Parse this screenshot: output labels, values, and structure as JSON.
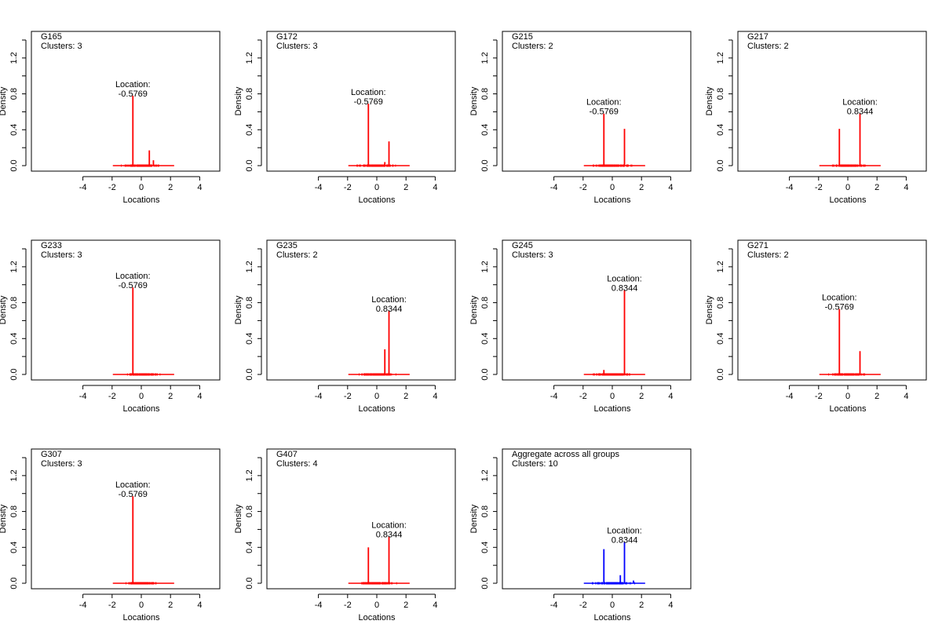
{
  "chart_data": [
    {
      "type": "bar",
      "title": "G165",
      "subtitle": "Clusters: 3",
      "color": "#ff0000",
      "xlabel": "Locations",
      "ylabel": "Density",
      "xlim": [
        -5,
        5
      ],
      "ylim": [
        0,
        1.4
      ],
      "xticks": [
        "-4",
        "-2",
        "0",
        "2",
        "4"
      ],
      "yticks": [
        "0.0",
        "0.4",
        "0.8",
        "1.2"
      ],
      "spikes": [
        {
          "x": -0.5769,
          "y": 0.78
        },
        {
          "x": 0.55,
          "y": 0.17
        },
        {
          "x": 0.83,
          "y": 0.06
        }
      ],
      "annotation": {
        "line1": "Location:",
        "line2": "-0.5769",
        "x": -0.5769
      }
    },
    {
      "type": "bar",
      "title": "G172",
      "subtitle": "Clusters: 3",
      "color": "#ff0000",
      "xlabel": "Locations",
      "ylabel": "Density",
      "xlim": [
        -5,
        5
      ],
      "ylim": [
        0,
        1.4
      ],
      "xticks": [
        "-4",
        "-2",
        "0",
        "2",
        "4"
      ],
      "yticks": [
        "0.0",
        "0.4",
        "0.8",
        "1.2"
      ],
      "spikes": [
        {
          "x": -0.5769,
          "y": 0.69
        },
        {
          "x": 0.55,
          "y": 0.04
        },
        {
          "x": 0.8344,
          "y": 0.27
        }
      ],
      "annotation": {
        "line1": "Location:",
        "line2": "-0.5769",
        "x": -0.5769
      }
    },
    {
      "type": "bar",
      "title": "G215",
      "subtitle": "Clusters: 2",
      "color": "#ff0000",
      "xlabel": "Locations",
      "ylabel": "Density",
      "xlim": [
        -5,
        5
      ],
      "ylim": [
        0,
        1.4
      ],
      "xticks": [
        "-4",
        "-2",
        "0",
        "2",
        "4"
      ],
      "yticks": [
        "0.0",
        "0.4",
        "0.8",
        "1.2"
      ],
      "spikes": [
        {
          "x": -0.5769,
          "y": 0.58
        },
        {
          "x": 0.8344,
          "y": 0.41
        }
      ],
      "annotation": {
        "line1": "Location:",
        "line2": "-0.5769",
        "x": -0.5769
      }
    },
    {
      "type": "bar",
      "title": "G217",
      "subtitle": "Clusters: 2",
      "color": "#ff0000",
      "xlabel": "Locations",
      "ylabel": "Density",
      "xlim": [
        -5,
        5
      ],
      "ylim": [
        0,
        1.4
      ],
      "xticks": [
        "-4",
        "-2",
        "0",
        "2",
        "4"
      ],
      "yticks": [
        "0.0",
        "0.4",
        "0.8",
        "1.2"
      ],
      "spikes": [
        {
          "x": -0.5769,
          "y": 0.41
        },
        {
          "x": 0.8344,
          "y": 0.58
        }
      ],
      "annotation": {
        "line1": "Location:",
        "line2": "0.8344",
        "x": 0.8344
      }
    },
    {
      "type": "bar",
      "title": "G233",
      "subtitle": "Clusters: 3",
      "color": "#ff0000",
      "xlabel": "Locations",
      "ylabel": "Density",
      "xlim": [
        -5,
        5
      ],
      "ylim": [
        0,
        1.4
      ],
      "xticks": [
        "-4",
        "-2",
        "0",
        "2",
        "4"
      ],
      "yticks": [
        "0.0",
        "0.4",
        "0.8",
        "1.2"
      ],
      "spikes": [
        {
          "x": -0.5769,
          "y": 0.97
        }
      ],
      "annotation": {
        "line1": "Location:",
        "line2": "-0.5769",
        "x": -0.5769
      }
    },
    {
      "type": "bar",
      "title": "G235",
      "subtitle": "Clusters: 2",
      "color": "#ff0000",
      "xlabel": "Locations",
      "ylabel": "Density",
      "xlim": [
        -5,
        5
      ],
      "ylim": [
        0,
        1.4
      ],
      "xticks": [
        "-4",
        "-2",
        "0",
        "2",
        "4"
      ],
      "yticks": [
        "0.0",
        "0.4",
        "0.8",
        "1.2"
      ],
      "spikes": [
        {
          "x": 0.55,
          "y": 0.28
        },
        {
          "x": 0.8344,
          "y": 0.71
        }
      ],
      "annotation": {
        "line1": "Location:",
        "line2": "0.8344",
        "x": 0.8344
      }
    },
    {
      "type": "bar",
      "title": "G245",
      "subtitle": "Clusters: 3",
      "color": "#ff0000",
      "xlabel": "Locations",
      "ylabel": "Density",
      "xlim": [
        -5,
        5
      ],
      "ylim": [
        0,
        1.4
      ],
      "xticks": [
        "-4",
        "-2",
        "0",
        "2",
        "4"
      ],
      "yticks": [
        "0.0",
        "0.4",
        "0.8",
        "1.2"
      ],
      "spikes": [
        {
          "x": -0.5769,
          "y": 0.05
        },
        {
          "x": 0.8344,
          "y": 0.94
        }
      ],
      "annotation": {
        "line1": "Location:",
        "line2": "0.8344",
        "x": 0.8344
      }
    },
    {
      "type": "bar",
      "title": "G271",
      "subtitle": "Clusters: 2",
      "color": "#ff0000",
      "xlabel": "Locations",
      "ylabel": "Density",
      "xlim": [
        -5,
        5
      ],
      "ylim": [
        0,
        1.4
      ],
      "xticks": [
        "-4",
        "-2",
        "0",
        "2",
        "4"
      ],
      "yticks": [
        "0.0",
        "0.4",
        "0.8",
        "1.2"
      ],
      "spikes": [
        {
          "x": -0.5769,
          "y": 0.73
        },
        {
          "x": 0.8344,
          "y": 0.26
        }
      ],
      "annotation": {
        "line1": "Location:",
        "line2": "-0.5769",
        "x": -0.5769
      }
    },
    {
      "type": "bar",
      "title": "G307",
      "subtitle": "Clusters: 3",
      "color": "#ff0000",
      "xlabel": "Locations",
      "ylabel": "Density",
      "xlim": [
        -5,
        5
      ],
      "ylim": [
        0,
        1.4
      ],
      "xticks": [
        "-4",
        "-2",
        "0",
        "2",
        "4"
      ],
      "yticks": [
        "0.0",
        "0.4",
        "0.8",
        "1.2"
      ],
      "spikes": [
        {
          "x": -0.5769,
          "y": 0.97
        },
        {
          "x": 0.8344,
          "y": 0.01
        }
      ],
      "annotation": {
        "line1": "Location:",
        "line2": "-0.5769",
        "x": -0.5769
      }
    },
    {
      "type": "bar",
      "title": "G407",
      "subtitle": "Clusters: 4",
      "color": "#ff0000",
      "xlabel": "Locations",
      "ylabel": "Density",
      "xlim": [
        -5,
        5
      ],
      "ylim": [
        0,
        1.4
      ],
      "xticks": [
        "-4",
        "-2",
        "0",
        "2",
        "4"
      ],
      "yticks": [
        "0.0",
        "0.4",
        "0.8",
        "1.2"
      ],
      "spikes": [
        {
          "x": -0.5769,
          "y": 0.4
        },
        {
          "x": 0.8344,
          "y": 0.52
        }
      ],
      "annotation": {
        "line1": "Location:",
        "line2": "0.8344",
        "x": 0.8344
      }
    },
    {
      "type": "bar",
      "title": "Aggregate across all groups",
      "subtitle": "Clusters: 10",
      "color": "#0000ff",
      "xlabel": "Locations",
      "ylabel": "Density",
      "xlim": [
        -5,
        5
      ],
      "ylim": [
        0,
        1.4
      ],
      "xticks": [
        "-4",
        "-2",
        "0",
        "2",
        "4"
      ],
      "yticks": [
        "0.0",
        "0.4",
        "0.8",
        "1.2"
      ],
      "spikes": [
        {
          "x": -0.5769,
          "y": 0.38
        },
        {
          "x": 0.55,
          "y": 0.09
        },
        {
          "x": 0.8344,
          "y": 0.46
        },
        {
          "x": 1.45,
          "y": 0.03
        },
        {
          "x": -0.2,
          "y": 0.01
        }
      ],
      "annotation": {
        "line1": "Location:",
        "line2": "0.8344",
        "x": 0.8344
      }
    }
  ]
}
